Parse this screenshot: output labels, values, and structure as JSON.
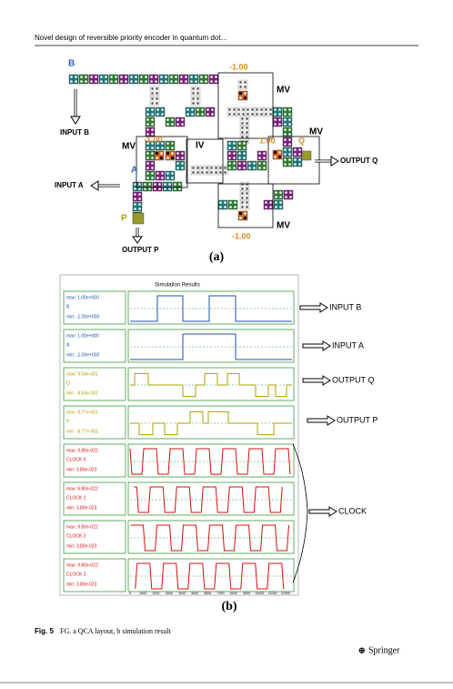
{
  "header": {
    "title": "Novel design of reversible priority encoder in quantum dot…"
  },
  "figure_a": {
    "labels": {
      "b": "B",
      "input_b": "INPUT B",
      "mv_top": "MV",
      "mv_top_value": "-1.00",
      "mv_left": "MV",
      "mv_left_value": "-1.00",
      "iv": "IV",
      "mv_right_value": "1.00",
      "q": "Q",
      "mv_right": "MV",
      "output_q": "OUTPUT Q",
      "a": "A",
      "input_a": "INPUT A",
      "p": "P",
      "output_p": "OUTPUT P",
      "mv_bottom": "MV",
      "mv_bottom_value": "-1.00"
    },
    "panel_label": "(a)"
  },
  "figure_b": {
    "title": "Simulation Results",
    "signals": [
      {
        "max": "max: 1.00e+000",
        "name": "B",
        "min": "min: -1.00e+000"
      },
      {
        "max": "max: 1.00e+000",
        "name": "A",
        "min": "min: -1.00e+000"
      },
      {
        "max": "max: 9.54e-001",
        "name": "Q",
        "min": "min: -9.54e-001"
      },
      {
        "max": "max: 8.77e-001",
        "name": "P",
        "min": "min: -8.77e-001"
      },
      {
        "max": "max: 9.80e-022",
        "name": "CLOCK 0",
        "min": "min: 3.80e-023"
      },
      {
        "max": "max: 9.80e-022",
        "name": "CLOCK 1",
        "min": "min: 3.80e-023"
      },
      {
        "max": "max: 9.80e-022",
        "name": "CLOCK 2",
        "min": "min: 3.80e-023"
      },
      {
        "max": "max: 9.80e-022",
        "name": "CLOCK 3",
        "min": "min: 3.80e-023"
      }
    ],
    "arrow_labels": [
      "INPUT B",
      "INPUT A",
      "OUTPUT Q",
      "OUTPUT P",
      "CLOCK"
    ],
    "x_ticks": [
      "0",
      "1000",
      "2000",
      "3000",
      "4000",
      "5000",
      "6000",
      "7000",
      "8000",
      "9000",
      "10000",
      "11000",
      "12000"
    ],
    "panel_label": "(b)"
  },
  "caption": {
    "label": "Fig. 5",
    "text": "FG. a QCA layout, b simulation result"
  },
  "footer": {
    "publisher": "Springer"
  }
}
